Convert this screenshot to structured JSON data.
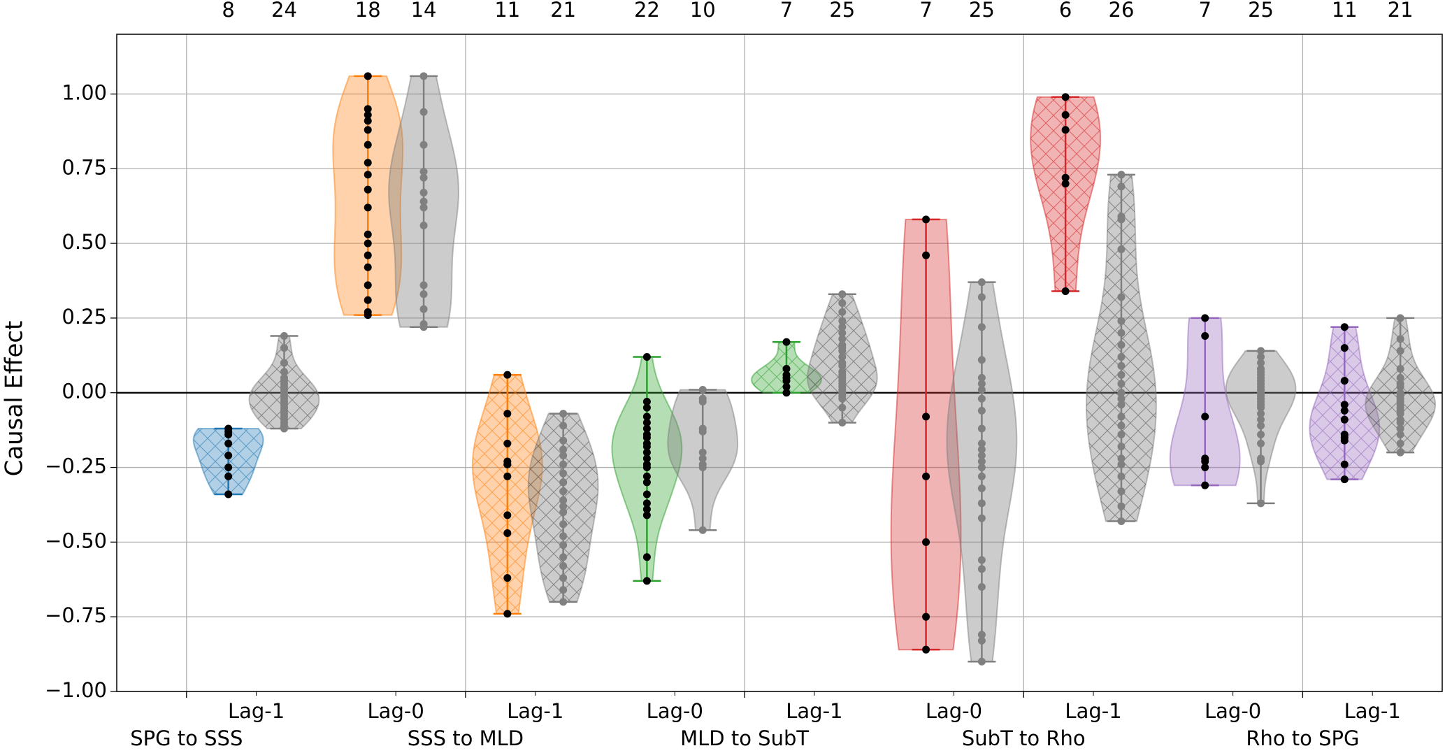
{
  "chart_data": {
    "type": "violin",
    "ylabel": "Causal Effect",
    "ylim": [
      -1,
      1.2
    ],
    "yticks": [
      {
        "value": -1,
        "label": "−1.00"
      },
      {
        "value": -0.75,
        "label": "−0.75"
      },
      {
        "value": -0.5,
        "label": "−0.50"
      },
      {
        "value": -0.25,
        "label": "−0.25"
      },
      {
        "value": 0,
        "label": "0.00"
      },
      {
        "value": 0.25,
        "label": "0.25"
      },
      {
        "value": 0.5,
        "label": "0.50"
      },
      {
        "value": 0.75,
        "label": "0.75"
      },
      {
        "value": 1,
        "label": "1.00"
      }
    ],
    "grid": true,
    "hline": 0,
    "groups": [
      "SPG to SSS",
      "SSS to MLD",
      "MLD to SubT",
      "SubT to Rho",
      "Rho to SPG"
    ],
    "pairs": [
      {
        "label": "Lag-1",
        "hatch": true,
        "violins": [
          {
            "color": "#1f77b4",
            "point_color": "#000000",
            "n": 8,
            "points": [
              -0.12,
              -0.13,
              -0.14,
              -0.17,
              -0.21,
              -0.25,
              -0.28,
              -0.34
            ]
          },
          {
            "color": "#7f7f7f",
            "point_color": "#808080",
            "n": 24,
            "points": [
              0.19,
              0.15,
              0.1,
              0.07,
              0.05,
              0.04,
              0.03,
              0.02,
              0.01,
              0,
              0,
              -0.01,
              -0.02,
              -0.03,
              -0.03,
              -0.04,
              -0.05,
              -0.06,
              -0.07,
              -0.08,
              -0.09,
              -0.1,
              -0.11,
              -0.12
            ]
          }
        ]
      },
      {
        "label": "Lag-0",
        "hatch": false,
        "violins": [
          {
            "color": "#ff7f0e",
            "point_color": "#000000",
            "n": 18,
            "points": [
              1.06,
              0.95,
              0.93,
              0.91,
              0.88,
              0.83,
              0.77,
              0.73,
              0.68,
              0.62,
              0.53,
              0.5,
              0.46,
              0.42,
              0.36,
              0.31,
              0.27,
              0.26
            ]
          },
          {
            "color": "#7f7f7f",
            "point_color": "#808080",
            "n": 14,
            "points": [
              1.06,
              0.94,
              0.83,
              0.74,
              0.72,
              0.67,
              0.64,
              0.62,
              0.56,
              0.36,
              0.33,
              0.28,
              0.23,
              0.22
            ]
          }
        ]
      },
      {
        "label": "Lag-1",
        "hatch": true,
        "violins": [
          {
            "color": "#ff7f0e",
            "point_color": "#000000",
            "n": 11,
            "points": [
              0.06,
              -0.07,
              -0.17,
              -0.23,
              -0.24,
              -0.24,
              -0.28,
              -0.41,
              -0.47,
              -0.62,
              -0.74
            ]
          },
          {
            "color": "#7f7f7f",
            "point_color": "#808080",
            "n": 21,
            "points": [
              -0.07,
              -0.11,
              -0.16,
              -0.19,
              -0.21,
              -0.24,
              -0.27,
              -0.3,
              -0.3,
              -0.33,
              -0.36,
              -0.38,
              -0.4,
              -0.44,
              -0.48,
              -0.51,
              -0.55,
              -0.58,
              -0.62,
              -0.66,
              -0.7
            ]
          }
        ]
      },
      {
        "label": "Lag-0",
        "hatch": false,
        "violins": [
          {
            "color": "#2ca02c",
            "point_color": "#000000",
            "n": 22,
            "points": [
              0.12,
              -0.03,
              -0.05,
              -0.08,
              -0.1,
              -0.12,
              -0.14,
              -0.15,
              -0.17,
              -0.18,
              -0.2,
              -0.22,
              -0.24,
              -0.25,
              -0.28,
              -0.3,
              -0.34,
              -0.37,
              -0.39,
              -0.41,
              -0.55,
              -0.63
            ]
          },
          {
            "color": "#7f7f7f",
            "point_color": "#808080",
            "n": 10,
            "points": [
              0.01,
              -0.02,
              -0.03,
              -0.12,
              -0.13,
              -0.2,
              -0.22,
              -0.24,
              -0.25,
              -0.46
            ]
          }
        ]
      },
      {
        "label": "Lag-1",
        "hatch": true,
        "violins": [
          {
            "color": "#2ca02c",
            "point_color": "#000000",
            "n": 7,
            "points": [
              0.17,
              0.08,
              0.06,
              0.05,
              0.04,
              0.02,
              0
            ]
          },
          {
            "color": "#7f7f7f",
            "point_color": "#808080",
            "n": 25,
            "points": [
              0.33,
              0.3,
              0.27,
              0.24,
              0.22,
              0.2,
              0.18,
              0.16,
              0.15,
              0.14,
              0.12,
              0.1,
              0.09,
              0.07,
              0.06,
              0.05,
              0.04,
              0.03,
              0.02,
              0.01,
              0,
              -0.01,
              -0.02,
              -0.05,
              -0.1
            ]
          }
        ]
      },
      {
        "label": "Lag-0",
        "hatch": false,
        "violins": [
          {
            "color": "#d62728",
            "point_color": "#000000",
            "n": 7,
            "points": [
              0.58,
              0.46,
              -0.08,
              -0.28,
              -0.5,
              -0.75,
              -0.86
            ]
          },
          {
            "color": "#7f7f7f",
            "point_color": "#808080",
            "n": 25,
            "points": [
              0.37,
              0.32,
              0.22,
              0.11,
              0.05,
              0.03,
              0.01,
              -0.02,
              -0.06,
              -0.12,
              -0.17,
              -0.19,
              -0.21,
              -0.23,
              -0.25,
              -0.28,
              -0.32,
              -0.37,
              -0.42,
              -0.56,
              -0.59,
              -0.65,
              -0.81,
              -0.83,
              -0.9
            ]
          }
        ]
      },
      {
        "label": "Lag-1",
        "hatch": true,
        "violins": [
          {
            "color": "#d62728",
            "point_color": "#000000",
            "n": 6,
            "points": [
              0.99,
              0.93,
              0.88,
              0.72,
              0.7,
              0.34
            ]
          },
          {
            "color": "#7f7f7f",
            "point_color": "#808080",
            "n": 26,
            "points": [
              0.73,
              0.69,
              0.59,
              0.58,
              0.48,
              0.32,
              0.24,
              0.2,
              0.16,
              0.12,
              0.09,
              0.06,
              0.03,
              0,
              -0.02,
              -0.04,
              -0.08,
              -0.11,
              -0.14,
              -0.18,
              -0.22,
              -0.24,
              -0.28,
              -0.33,
              -0.38,
              -0.43
            ]
          }
        ]
      },
      {
        "label": "Lag-0",
        "hatch": false,
        "violins": [
          {
            "color": "#9467bd",
            "point_color": "#000000",
            "n": 7,
            "points": [
              0.25,
              0.19,
              -0.08,
              -0.22,
              -0.23,
              -0.25,
              -0.31
            ]
          },
          {
            "color": "#7f7f7f",
            "point_color": "#808080",
            "n": 25,
            "points": [
              0.14,
              0.12,
              0.1,
              0.08,
              0.07,
              0.06,
              0.05,
              0.04,
              0.03,
              0.02,
              0.01,
              0,
              -0.01,
              -0.02,
              -0.03,
              -0.04,
              -0.05,
              -0.07,
              -0.09,
              -0.11,
              -0.14,
              -0.17,
              -0.22,
              -0.23,
              -0.37
            ]
          }
        ]
      },
      {
        "label": "Lag-1",
        "hatch": true,
        "violins": [
          {
            "color": "#9467bd",
            "point_color": "#000000",
            "n": 11,
            "points": [
              0.22,
              0.15,
              0.04,
              -0.04,
              -0.06,
              -0.09,
              -0.14,
              -0.15,
              -0.16,
              -0.24,
              -0.29
            ]
          },
          {
            "color": "#7f7f7f",
            "point_color": "#808080",
            "n": 21,
            "points": [
              0.25,
              0.18,
              0.14,
              0.08,
              0.05,
              0.03,
              0.02,
              0,
              -0.01,
              -0.02,
              -0.03,
              -0.04,
              -0.05,
              -0.06,
              -0.07,
              -0.09,
              -0.1,
              -0.12,
              -0.14,
              -0.17,
              -0.2
            ]
          }
        ]
      }
    ]
  }
}
